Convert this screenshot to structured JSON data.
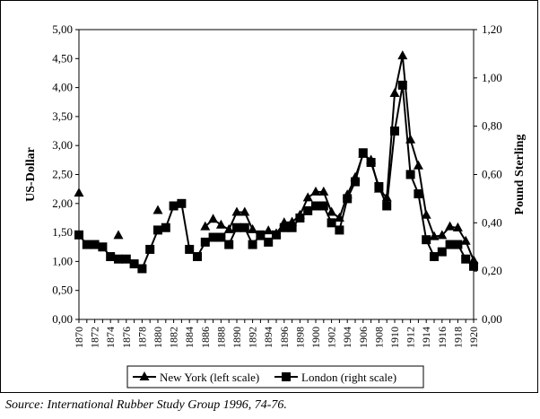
{
  "source_note": "Source: International Rubber Study Group 1996, 74-76.",
  "chart_data": {
    "type": "line",
    "ylabel": "US-Dollar",
    "y2label": "Pound Sterling",
    "ylim": [
      0,
      5
    ],
    "y2lim": [
      0,
      1.2
    ],
    "xlim": [
      1870,
      1920
    ],
    "x_ticks": [
      1870,
      1872,
      1874,
      1876,
      1878,
      1880,
      1882,
      1884,
      1886,
      1888,
      1890,
      1892,
      1894,
      1896,
      1898,
      1900,
      1902,
      1904,
      1906,
      1908,
      1910,
      1912,
      1914,
      1916,
      1918,
      1920
    ],
    "y_ticks": [
      "0,00",
      "0,50",
      "1,00",
      "1,50",
      "2,00",
      "2,50",
      "3,00",
      "3,50",
      "4,00",
      "4,50",
      "5,00"
    ],
    "y2_ticks": [
      "0,00",
      "0,20",
      "0,40",
      "0,60",
      "0,80",
      "1,00",
      "1,20"
    ],
    "legend_position": "bottom",
    "grid": false,
    "series": [
      {
        "name": "New York (left scale)",
        "axis": "left",
        "marker": "triangle",
        "segments": [
          [
            [
              1870,
              2.18
            ]
          ],
          [
            [
              1875,
              1.45
            ]
          ],
          [
            [
              1880,
              1.88
            ]
          ],
          [
            [
              1886,
              1.6
            ],
            [
              1887,
              1.73
            ],
            [
              1888,
              1.63
            ],
            [
              1889,
              1.55
            ],
            [
              1890,
              1.85
            ],
            [
              1891,
              1.85
            ],
            [
              1892,
              1.55
            ],
            [
              1893,
              1.43
            ],
            [
              1894,
              1.53
            ],
            [
              1895,
              1.48
            ],
            [
              1896,
              1.67
            ],
            [
              1897,
              1.68
            ],
            [
              1898,
              1.8
            ],
            [
              1899,
              2.1
            ],
            [
              1900,
              2.2
            ],
            [
              1901,
              2.2
            ],
            [
              1902,
              1.85
            ],
            [
              1903,
              1.75
            ],
            [
              1904,
              2.15
            ],
            [
              1905,
              2.45
            ],
            [
              1906,
              2.85
            ],
            [
              1907,
              2.75
            ],
            [
              1908,
              2.25
            ],
            [
              1909,
              2.1
            ],
            [
              1910,
              3.9
            ],
            [
              1911,
              4.55
            ],
            [
              1912,
              3.1
            ],
            [
              1913,
              2.65
            ],
            [
              1914,
              1.8
            ],
            [
              1915,
              1.43
            ],
            [
              1916,
              1.45
            ],
            [
              1917,
              1.6
            ],
            [
              1918,
              1.58
            ],
            [
              1919,
              1.35
            ],
            [
              1920,
              1.02
            ]
          ]
        ]
      },
      {
        "name": "London (right scale)",
        "axis": "right",
        "marker": "square",
        "segments": [
          [
            [
              1870,
              0.35
            ],
            [
              1871,
              0.31
            ],
            [
              1872,
              0.31
            ],
            [
              1873,
              0.3
            ],
            [
              1874,
              0.26
            ],
            [
              1875,
              0.25
            ],
            [
              1876,
              0.25
            ],
            [
              1877,
              0.23
            ],
            [
              1878,
              0.21
            ],
            [
              1879,
              0.29
            ],
            [
              1880,
              0.37
            ],
            [
              1881,
              0.38
            ],
            [
              1882,
              0.47
            ],
            [
              1883,
              0.48
            ],
            [
              1884,
              0.29
            ],
            [
              1885,
              0.26
            ],
            [
              1886,
              0.32
            ],
            [
              1887,
              0.34
            ],
            [
              1888,
              0.34
            ],
            [
              1889,
              0.31
            ],
            [
              1890,
              0.38
            ],
            [
              1891,
              0.38
            ],
            [
              1892,
              0.31
            ],
            [
              1893,
              0.35
            ],
            [
              1894,
              0.32
            ],
            [
              1895,
              0.35
            ],
            [
              1896,
              0.38
            ],
            [
              1897,
              0.38
            ],
            [
              1898,
              0.42
            ],
            [
              1899,
              0.45
            ],
            [
              1900,
              0.47
            ],
            [
              1901,
              0.47
            ],
            [
              1902,
              0.4
            ],
            [
              1903,
              0.37
            ],
            [
              1904,
              0.5
            ],
            [
              1905,
              0.57
            ],
            [
              1906,
              0.69
            ],
            [
              1907,
              0.65
            ],
            [
              1908,
              0.55
            ],
            [
              1909,
              0.47
            ],
            [
              1910,
              0.78
            ],
            [
              1911,
              0.97
            ],
            [
              1912,
              0.6
            ],
            [
              1913,
              0.52
            ],
            [
              1914,
              0.33
            ],
            [
              1915,
              0.26
            ],
            [
              1916,
              0.28
            ],
            [
              1917,
              0.31
            ],
            [
              1918,
              0.31
            ],
            [
              1919,
              0.25
            ],
            [
              1920,
              0.22
            ]
          ]
        ]
      }
    ]
  }
}
